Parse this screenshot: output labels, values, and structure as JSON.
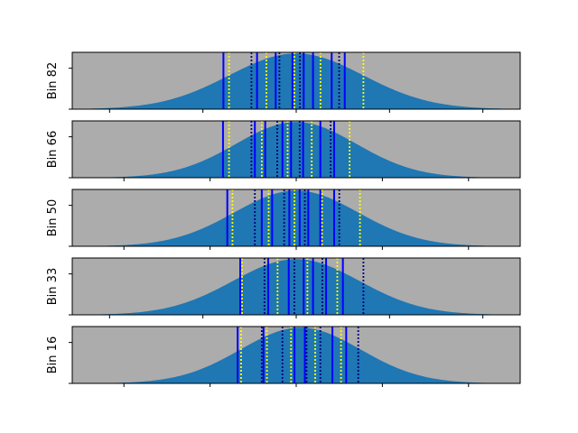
{
  "chart_data": [
    {
      "type": "area",
      "ylabel": "Bin 82",
      "xlim": [
        -2.4,
        2.4
      ],
      "xticks": [
        -2,
        -1,
        0,
        1,
        2
      ],
      "mean": 0.0,
      "sd": 0.72,
      "solid_lines": [
        -0.78,
        -0.42,
        -0.22,
        -0.04,
        0.08,
        0.18,
        0.38,
        0.52
      ],
      "dotted_lines": [
        -0.72,
        -0.48,
        -0.32,
        -0.18,
        -0.02,
        0.04,
        0.26,
        0.46,
        0.72
      ]
    },
    {
      "type": "area",
      "ylabel": "Bin 66",
      "xlim": [
        -2.6,
        2.6
      ],
      "xticks": [
        -2,
        -1,
        0,
        1,
        2
      ],
      "mean": 0.0,
      "sd": 0.7,
      "solid_lines": [
        -0.85,
        -0.48,
        -0.36,
        -0.16,
        -0.06,
        0.08,
        0.28,
        0.44
      ],
      "dotted_lines": [
        -0.78,
        -0.52,
        -0.4,
        -0.22,
        -0.1,
        0.04,
        0.18,
        0.4,
        0.62
      ]
    },
    {
      "type": "area",
      "ylabel": "Bin 50",
      "xlim": [
        -2.6,
        2.6
      ],
      "xticks": [
        -2,
        -1,
        0,
        1,
        2
      ],
      "mean": 0.0,
      "sd": 0.72,
      "solid_lines": [
        -0.8,
        -0.4,
        -0.28,
        -0.08,
        0.04,
        0.14,
        0.28,
        0.44
      ],
      "dotted_lines": [
        -0.74,
        -0.48,
        -0.32,
        -0.14,
        -0.02,
        0.1,
        0.3,
        0.5,
        0.74
      ]
    },
    {
      "type": "area",
      "ylabel": "Bin 33",
      "xlim": [
        -2.4,
        2.4
      ],
      "xticks": [
        -2,
        -1,
        0,
        1,
        2
      ],
      "mean": 0.0,
      "sd": 0.68,
      "solid_lines": [
        -0.6,
        -0.3,
        -0.08,
        0.08,
        0.18,
        0.32,
        0.5
      ],
      "dotted_lines": [
        -0.58,
        -0.34,
        -0.2,
        -0.02,
        0.12,
        0.28,
        0.44,
        0.72
      ]
    },
    {
      "type": "area",
      "ylabel": "Bin 16",
      "xlim": [
        -2.6,
        2.6
      ],
      "xticks": [
        -2,
        -1,
        0,
        1,
        2
      ],
      "mean": 0.05,
      "sd": 0.7,
      "solid_lines": [
        -0.68,
        -0.38,
        -0.02,
        0.1,
        0.42,
        0.58
      ],
      "dotted_lines": [
        -0.64,
        -0.4,
        -0.34,
        -0.16,
        -0.06,
        0.12,
        0.22,
        0.28,
        0.52,
        0.72
      ]
    }
  ],
  "colors": {
    "axes_background": "#acacac",
    "area_fill": "#1f77b4",
    "solid_line": "#0000ff",
    "dotted_line_a": "#ffff00",
    "dotted_line_b": "#00007f"
  }
}
